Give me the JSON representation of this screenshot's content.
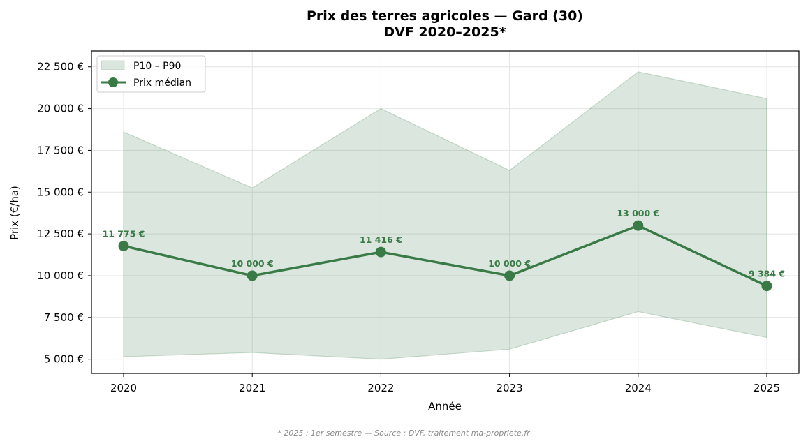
{
  "chart_data": {
    "type": "line",
    "title": "Prix des terres agricoles — Gard (30)",
    "subtitle": "DVF 2020–2025*",
    "xlabel": "Année",
    "ylabel": "Prix (€/ha)",
    "x": [
      2020,
      2021,
      2022,
      2023,
      2024,
      2025
    ],
    "x_tick_labels": [
      "2020",
      "2021",
      "2022",
      "2023",
      "2024",
      "2025"
    ],
    "ylim": [
      4150,
      23450
    ],
    "y_ticks": [
      5000,
      7500,
      10000,
      12500,
      15000,
      17500,
      20000,
      22500
    ],
    "y_tick_labels": [
      "5 000 €",
      "7 500 €",
      "10 000 €",
      "12 500 €",
      "15 000 €",
      "17 500 €",
      "20 000 €",
      "22 500 €"
    ],
    "grid": true,
    "legend_position": "upper left",
    "series": [
      {
        "name": "Prix médian",
        "type": "line",
        "color": "#3a7a47",
        "marker": "circle",
        "values": [
          11775,
          10000,
          11416,
          10000,
          13000,
          9384
        ],
        "data_labels": [
          "11 775 €",
          "10 000 €",
          "11 416 €",
          "10 000 €",
          "13 000 €",
          "9 384 €"
        ]
      },
      {
        "name": "P10 – P90",
        "type": "band",
        "color": "#3a7a47",
        "fill_color": "#dae6dc",
        "p10": [
          5150,
          5400,
          5000,
          5600,
          7850,
          6300
        ],
        "p90": [
          18600,
          15250,
          20000,
          16300,
          22200,
          20600
        ]
      }
    ],
    "annotations": [
      "* 2025 : 1er semestre — Source : DVF, traitement ma-propriete.fr"
    ]
  },
  "legend": {
    "band_label": "P10 – P90",
    "line_label": "Prix médian"
  },
  "footnote": "* 2025 : 1er semestre — Source : DVF, traitement ma-propriete.fr",
  "colors": {
    "line": "#3a7a47",
    "band_fill": "#dae6dc",
    "band_edge": "#b8d2be",
    "grid": "#e4e4e4"
  }
}
